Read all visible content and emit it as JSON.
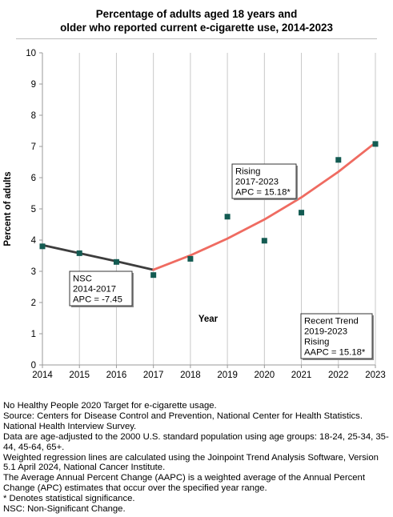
{
  "title_line1": "Percentage of adults aged 18 years and",
  "title_line2": "older who reported current e-cigarette use, 2014-2023",
  "chart_data": {
    "type": "scatter",
    "xlabel": "Year",
    "ylabel": "Percent of adults",
    "xlim": [
      2014,
      2023
    ],
    "ylim": [
      0,
      10
    ],
    "x_ticks": [
      2014,
      2015,
      2016,
      2017,
      2018,
      2019,
      2020,
      2021,
      2022,
      2023
    ],
    "y_ticks": [
      0,
      1,
      2,
      3,
      4,
      5,
      6,
      7,
      8,
      9,
      10
    ],
    "grid": "vertical",
    "points": [
      {
        "x": 2014,
        "y": 3.8
      },
      {
        "x": 2015,
        "y": 3.58
      },
      {
        "x": 2016,
        "y": 3.3
      },
      {
        "x": 2017,
        "y": 2.88
      },
      {
        "x": 2018,
        "y": 3.4
      },
      {
        "x": 2019,
        "y": 4.75
      },
      {
        "x": 2020,
        "y": 3.98
      },
      {
        "x": 2021,
        "y": 4.88
      },
      {
        "x": 2022,
        "y": 6.57
      },
      {
        "x": 2023,
        "y": 7.08
      }
    ],
    "trend_segments": [
      {
        "color": "#3d3d3d",
        "points": [
          [
            2014,
            3.84
          ],
          [
            2015,
            3.58
          ],
          [
            2016,
            3.32
          ],
          [
            2017,
            3.05
          ]
        ]
      },
      {
        "color": "#ef6b61",
        "points": [
          [
            2017,
            3.05
          ],
          [
            2018,
            3.51
          ],
          [
            2019,
            4.05
          ],
          [
            2020,
            4.66
          ],
          [
            2021,
            5.37
          ],
          [
            2022,
            6.19
          ],
          [
            2023,
            7.12
          ]
        ]
      }
    ],
    "annotations": [
      {
        "lines": [
          "NSC",
          "2014-2017",
          "APC = -7.45"
        ]
      },
      {
        "lines": [
          "Rising",
          "2017-2023",
          "APC = 15.18*"
        ]
      },
      {
        "lines": [
          "Recent Trend",
          "2019-2023",
          "Rising",
          "AAPC = 15.18*"
        ]
      }
    ]
  },
  "notes": [
    "No Healthy People 2020 Target for e-cigarette usage.",
    "Source: Centers for Disease Control and Prevention, National Center for Health Statistics. National Health Interview Survey.",
    "Data are age-adjusted to the 2000 U.S. standard population using age groups: 18-24, 25-34, 35-44, 45-64, 65+.",
    "Weighted regression lines are calculated using the Joinpoint Trend Analysis Software, Version 5.1 April 2024, National Cancer Institute.",
    "The Average Annual Percent Change (AAPC) is a weighted average of the Annual Percent Change (APC) estimates that occur over the specified year range.",
    "* Denotes statistical significance.",
    "NSC: Non-Significant Change."
  ]
}
